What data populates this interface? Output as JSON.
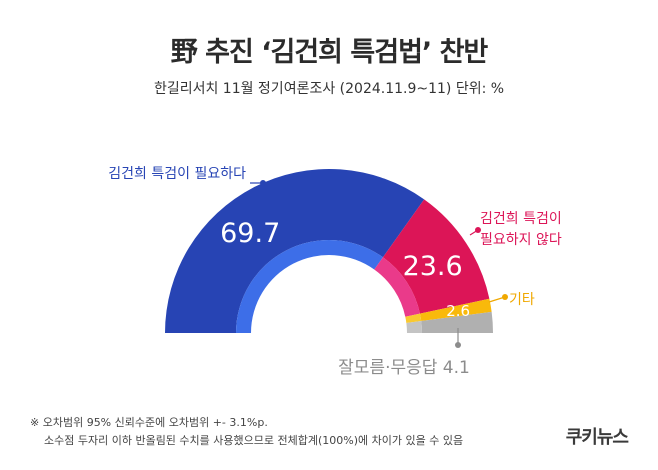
{
  "header": {
    "title": "野 추진 ‘김건희 특검법’ 찬반",
    "subtitle": "한길리서치 11월 정기여론조사 (2024.11.9~11) 단위: %"
  },
  "chart_data": {
    "type": "pie",
    "style": "semi-donut",
    "categories": [
      "김건희 특검이 필요하다",
      "김건희 특검이 필요하지 않다",
      "기타",
      "잘모름·무응답"
    ],
    "values": [
      69.7,
      23.6,
      2.6,
      4.1
    ],
    "value_labels": [
      "69.7",
      "23.6",
      "2.6",
      ""
    ],
    "colors": [
      "#2744b4",
      "#dc1557",
      "#f9b90b",
      "#b0b0b0"
    ],
    "inner_colors": [
      "#3d6ee8",
      "#ea3a8a",
      "#f9c930",
      "#c4c4c4"
    ],
    "callouts": [
      {
        "lines": [
          "김건희 특검이 필요하다"
        ],
        "color": "#2744b4"
      },
      {
        "lines": [
          "김건희 특검이",
          "필요하지 않다"
        ],
        "color": "#dc1557"
      },
      {
        "lines": [
          "기타"
        ],
        "color": "#f0a800"
      },
      {
        "lines": [
          "잘모름·무응답 4.1"
        ],
        "color": "#8c8c8c"
      }
    ]
  },
  "footnotes": [
    "※ 오차범위 95% 신뢰수준에 오차범위 +- 3.1%p.",
    "소수점 두자리 이하 반올림된 수치를 사용했으므로 전체합계(100%)에 차이가 있을 수 있음"
  ],
  "logo": "쿠키뉴스"
}
